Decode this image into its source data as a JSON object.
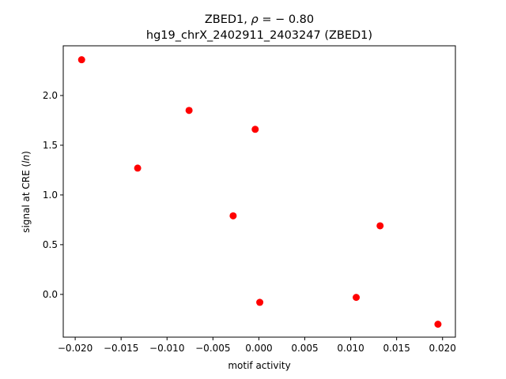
{
  "chart_data": {
    "type": "scatter",
    "title_line1_prefix": "ZBED1, ",
    "title_line1_rho": "ρ",
    "title_line1_suffix": " = − 0.80",
    "title_line2": "hg19_chrX_2402911_2403247 (ZBED1)",
    "xlabel": "motif activity",
    "ylabel_prefix": "signal at CRE (",
    "ylabel_italic": "ln",
    "ylabel_suffix": ")",
    "xlim": [
      -0.0213,
      0.0214
    ],
    "ylim": [
      -0.43,
      2.5
    ],
    "xticks": [
      -0.02,
      -0.015,
      -0.01,
      -0.005,
      0.0,
      0.005,
      0.01,
      0.015,
      0.02
    ],
    "xtick_labels": [
      "−0.020",
      "−0.015",
      "−0.010",
      "−0.005",
      "0.000",
      "0.005",
      "0.010",
      "0.015",
      "0.020"
    ],
    "yticks": [
      0.0,
      0.5,
      1.0,
      1.5,
      2.0
    ],
    "ytick_labels": [
      "0.0",
      "0.5",
      "1.0",
      "1.5",
      "2.0"
    ],
    "marker_color": "#ff0000",
    "points": [
      {
        "x": -0.0193,
        "y": 2.36
      },
      {
        "x": -0.0132,
        "y": 1.27
      },
      {
        "x": -0.0076,
        "y": 1.85
      },
      {
        "x": -0.0004,
        "y": 1.66
      },
      {
        "x": -0.0028,
        "y": 0.79
      },
      {
        "x": 0.0001,
        "y": -0.08
      },
      {
        "x": 0.0106,
        "y": -0.03
      },
      {
        "x": 0.0132,
        "y": 0.69
      },
      {
        "x": 0.0195,
        "y": -0.3
      }
    ],
    "grid": false,
    "legend": "none"
  }
}
